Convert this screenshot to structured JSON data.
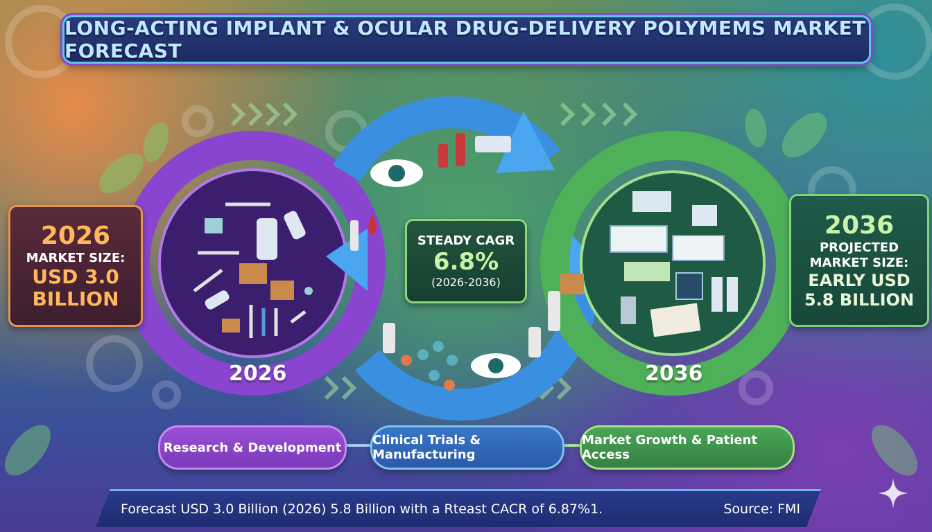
{
  "title": "LONG-ACTING IMPLANT & OCULAR DRUG-DELIVERY POLYMEMS MARKET FORECAST",
  "left_callout": {
    "year": "2026",
    "label": "MARKET SIZE:",
    "value_line1": "USD 3.0",
    "value_line2": "BILLION"
  },
  "right_callout": {
    "year": "2036",
    "label_line1": "PROJECTED",
    "label_line2": "MARKET SIZE:",
    "value_line1": "EARLY USD",
    "value_line2": "5.8 BILLION"
  },
  "cagr": {
    "label": "STEADY CAGR",
    "value": "6.8%",
    "period": "(2026-2036)"
  },
  "circles": {
    "left_year": "2026",
    "right_year": "2036"
  },
  "stages": [
    {
      "label": "Research & Development"
    },
    {
      "label": "Clinical Trials & Manufacturing"
    },
    {
      "label": "Market Growth & Patient Access"
    }
  ],
  "footer": {
    "text": "Forecast  USD 3.0 Billion (2026) 5.8 Billion  with a Rteast CACR of 6.87%1.",
    "source": "Source: FMI"
  },
  "colors": {
    "purple_circle": "#8a45d0",
    "blue_circle": "#3a8fe0",
    "green_circle": "#4fb05a",
    "orange_accent": "#e8934a",
    "title_text": "#bfe9ff"
  }
}
